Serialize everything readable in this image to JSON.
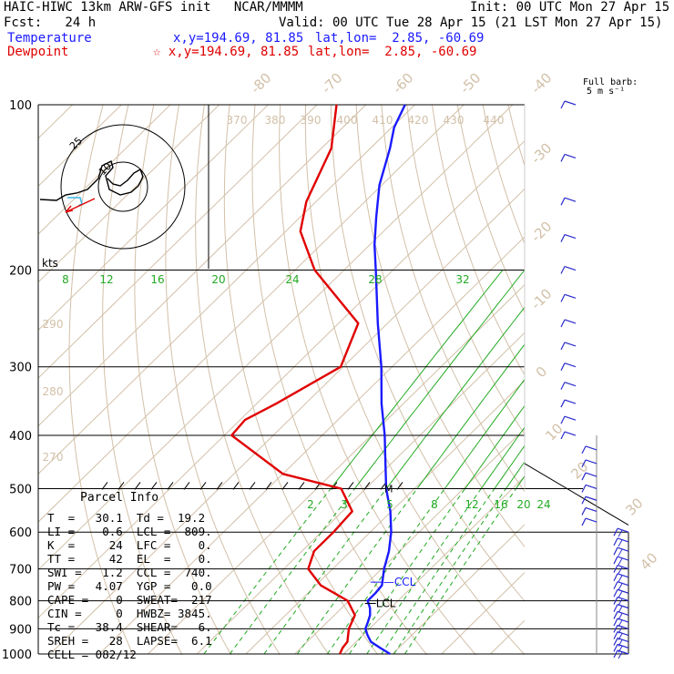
{
  "header": {
    "title": "HAIC-HIWC 13km ARW-GFS init   NCAR/MMMM",
    "init": "Init: 00 UTC Mon 27 Apr 15",
    "fcst": "Fcst:   24 h",
    "valid": "Valid: 00 UTC Tue 28 Apr 15 (21 LST Mon 27 Apr 15)",
    "temperature_label": "Temperature",
    "temperature_xy": "x,y=194.69, 81.85",
    "temperature_latlon": "lat,lon=  2.85, -60.69",
    "dewpoint_label": "Dewpoint",
    "dewpoint_xy": "☆ x,y=194.69, 81.85",
    "dewpoint_latlon": "lat,lon=  2.85, -60.69"
  },
  "barb_legend": {
    "line1": "Full barb:",
    "line2": "5 m s⁻¹"
  },
  "hodograph": {
    "rings": [
      "25",
      "10"
    ],
    "unit": "kts"
  },
  "parcel_info": {
    "title": "Parcel Info",
    "rows": [
      "T  =   30.1  Td =  19.2",
      "LI =    0.6  LCL =  809.",
      "K  =     24  LFC =    0.",
      "TT =     42  EL  =    0.",
      "SWI =   1.2  CCL =  740.",
      "PW =   4.07  YGP =   0.0",
      "CAPE =    0  SWEAT=  217",
      "CIN =     0  HWBZ= 3845.",
      "Tc =   38.4  SHEAR=   6.",
      "SREH =   28  LAPSE=  6.1",
      "CELL = 082/12"
    ]
  },
  "colors": {
    "temperature": "#1a1aff",
    "dewpoint": "#e00000",
    "isotherm": "#d2c0a8",
    "mixing_ratio": "#22aa22",
    "barb": "#2a2acc",
    "grid": "#000000"
  },
  "chart_data": {
    "type": "line",
    "subtype": "skew-T log-P sounding",
    "y_axis": {
      "label": "pressure (hPa)",
      "scale": "log",
      "range": [
        1000,
        100
      ],
      "ticks": [
        100,
        200,
        300,
        400,
        500,
        600,
        700,
        800,
        900,
        1000
      ]
    },
    "isotherm_labels": [
      "-80",
      "-70",
      "-60",
      "-50",
      "-40",
      "-30",
      "-20",
      "-10",
      "0",
      "10",
      "20",
      "30",
      "40"
    ],
    "theta_labels": [
      "370",
      "380",
      "390",
      "400",
      "410",
      "420",
      "430",
      "440",
      "290",
      "280",
      "270"
    ],
    "mixing_ratio_labels_upper": [
      "8",
      "12",
      "16",
      "20",
      "24",
      "28",
      "32"
    ],
    "mixing_ratio_labels_lower": [
      "2",
      "3",
      "5",
      "8",
      "12",
      "16",
      "20",
      "24"
    ],
    "markers": {
      "ccl_label": "—CCL",
      "lcl_label": "LCL",
      "m_label": "M"
    },
    "series": [
      {
        "name": "Temperature",
        "points": [
          [
            1000,
            29.5
          ],
          [
            975,
            26.2
          ],
          [
            950,
            23
          ],
          [
            925,
            21
          ],
          [
            900,
            19.2
          ],
          [
            875,
            18.3
          ],
          [
            850,
            17.3
          ],
          [
            825,
            15.8
          ],
          [
            800,
            13.8
          ],
          [
            775,
            13.8
          ],
          [
            750,
            13.5
          ],
          [
            700,
            10.5
          ],
          [
            650,
            7.8
          ],
          [
            600,
            4.3
          ],
          [
            550,
            -0.2
          ],
          [
            500,
            -5.8
          ],
          [
            450,
            -11.2
          ],
          [
            400,
            -17.2
          ],
          [
            350,
            -24.5
          ],
          [
            300,
            -32.2
          ],
          [
            250,
            -42
          ],
          [
            200,
            -53.5
          ],
          [
            180,
            -59
          ],
          [
            160,
            -64.5
          ],
          [
            140,
            -70.5
          ],
          [
            120,
            -76
          ],
          [
            110,
            -79.5
          ],
          [
            100,
            -82
          ]
        ]
      },
      {
        "name": "Dewpoint",
        "points": [
          [
            1000,
            19.2
          ],
          [
            975,
            18.5
          ],
          [
            950,
            18.2
          ],
          [
            900,
            15.8
          ],
          [
            850,
            14.2
          ],
          [
            800,
            9.7
          ],
          [
            750,
            1
          ],
          [
            700,
            -5
          ],
          [
            650,
            -7.5
          ],
          [
            600,
            -7.5
          ],
          [
            550,
            -8
          ],
          [
            500,
            -15
          ],
          [
            470,
            -30
          ],
          [
            400,
            -48.5
          ],
          [
            375,
            -49
          ],
          [
            350,
            -46
          ],
          [
            300,
            -40.5
          ],
          [
            250,
            -46
          ],
          [
            200,
            -66
          ],
          [
            170,
            -77
          ],
          [
            150,
            -82
          ],
          [
            120,
            -88
          ],
          [
            100,
            -96
          ]
        ]
      }
    ]
  }
}
